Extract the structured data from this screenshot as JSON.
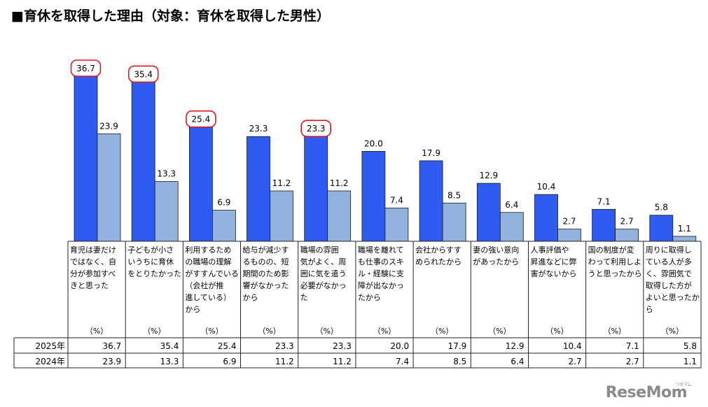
{
  "title": "■育休を取得した理由（対象：育休を取得した男性）",
  "watermark": "ReseMom",
  "watermark_sub": "リセマム",
  "colors": {
    "series_2025": "#2f5cf0",
    "series_2024": "#92b2de",
    "highlight": "#e0151b"
  },
  "chart_data": {
    "type": "bar",
    "title": "■育休を取得した理由（対象：育休を取得した男性）",
    "unit": "（%）",
    "ylim": [
      0,
      40
    ],
    "grid": false,
    "categories": [
      "育児は妻だけではなく、自分が参加すべきと思った",
      "子どもが小さいうちに育休をとりたかった",
      "利用するための職場の理解がすすんでいる（会社が推進している）から",
      "給与が減少するものの、短期間のため影響がなかったから",
      "職場の雰囲気がよく、周囲に気を遣う必要がなかった",
      "職場を離れても仕事のスキル・経験に支障が出なかったから",
      "会社からすすめられたから",
      "妻の強い意向があったから",
      "人事評価や昇進などに弊害がないから",
      "国の制度が変わって利用しようと思ったから",
      "周りに取得している人が多く、雰囲気で取得した方がよいと思ったから"
    ],
    "category_lines": [
      [
        "育児は妻だけ",
        "ではなく、自",
        "分が参加すべ",
        "きと思った"
      ],
      [
        "子どもが小さ",
        "いうちに育休",
        "をとりたかった"
      ],
      [
        "利用するため",
        "の職場の理解",
        "がすすんでいる",
        "（会社が推",
        "進している）",
        "から"
      ],
      [
        "給与が減少す",
        "るものの、短",
        "期間のため影",
        "響がなかった",
        "から"
      ],
      [
        "職場の雰囲",
        "気がよく、周",
        "囲に気を遣う",
        "必要がなかっ",
        "た"
      ],
      [
        "職場を離れて",
        "も仕事のスキ",
        "ル・経験に支",
        "障が出なかっ",
        "たから"
      ],
      [
        "会社からすす",
        "められたから"
      ],
      [
        "妻の強い意向",
        "があったから"
      ],
      [
        "人事評価や",
        "昇進などに弊",
        "害がないから"
      ],
      [
        "国の制度が変",
        "わって利用しよ",
        "うと思ったから"
      ],
      [
        "周りに取得し",
        "ている人が多",
        "く、雰囲気で",
        "取得した方が",
        "よいと思ったか",
        "ら"
      ]
    ],
    "series": [
      {
        "name": "2025年",
        "values": [
          36.7,
          35.4,
          25.4,
          23.3,
          23.3,
          20.0,
          17.9,
          12.9,
          10.4,
          7.1,
          5.8
        ],
        "labels": [
          "36.7",
          "35.4",
          "25.4",
          "23.3",
          "23.3",
          "20.0",
          "17.9",
          "12.9",
          "10.4",
          "7.1",
          "5.8"
        ]
      },
      {
        "name": "2024年",
        "values": [
          23.9,
          13.3,
          6.9,
          11.2,
          11.2,
          7.4,
          8.5,
          6.4,
          2.7,
          2.7,
          1.1
        ],
        "labels": [
          "23.9",
          "13.3",
          "6.9",
          "11.2",
          "11.2",
          "7.4",
          "8.5",
          "6.4",
          "2.7",
          "2.7",
          "1.1"
        ]
      }
    ],
    "highlighted_2025": [
      0,
      1,
      2,
      4
    ]
  }
}
